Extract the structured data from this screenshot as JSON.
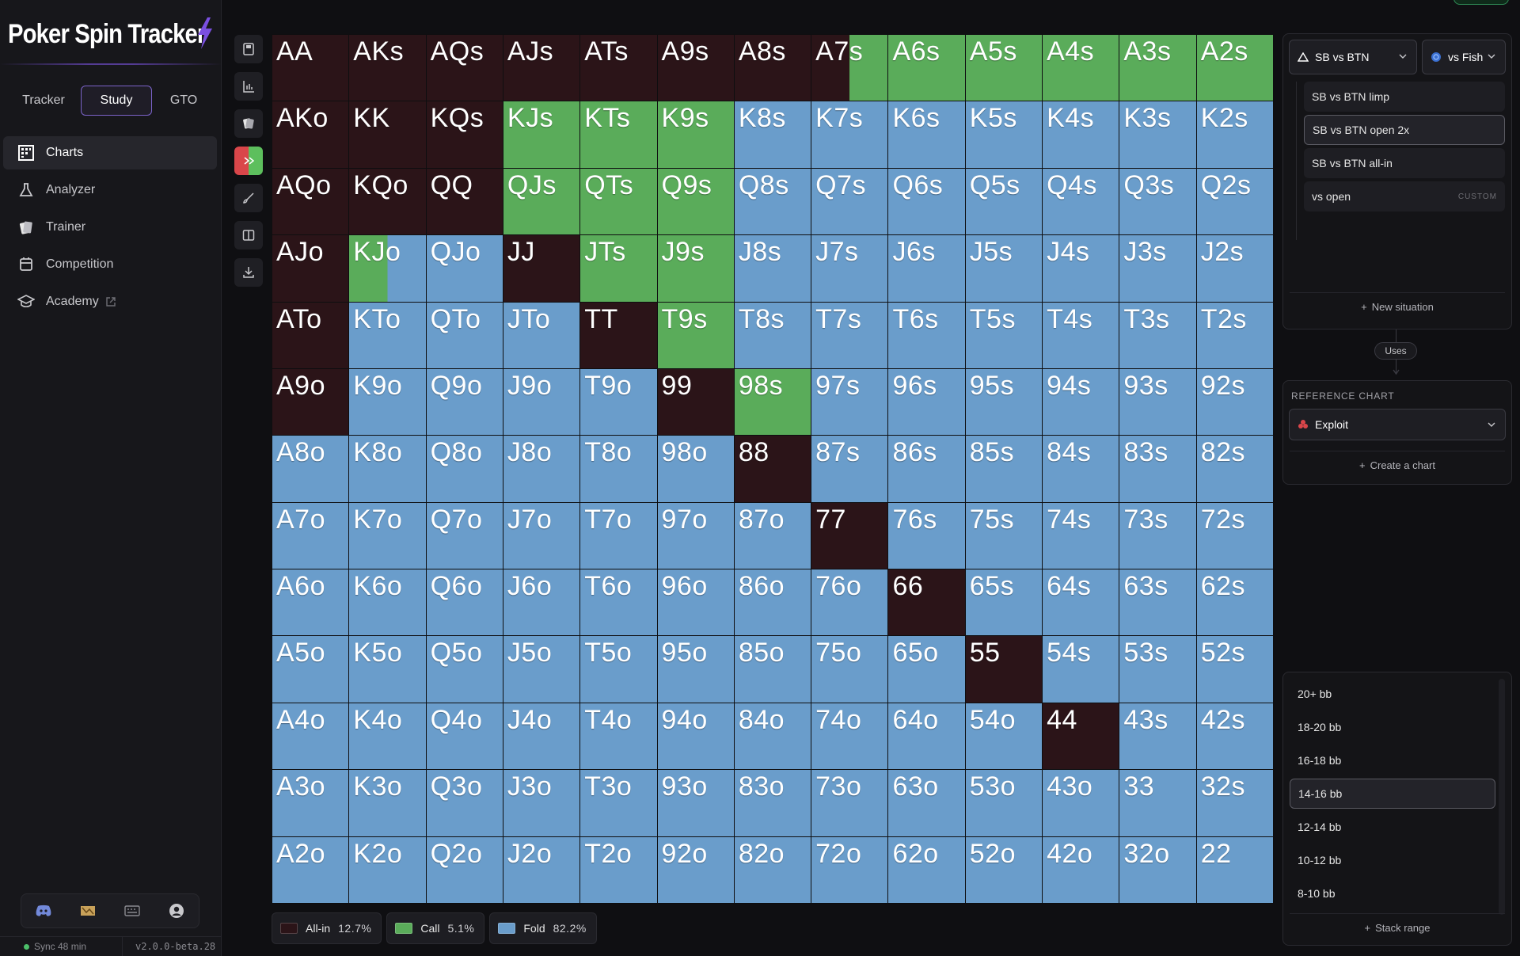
{
  "brand": {
    "name": "Poker Spin Tracker"
  },
  "tabs": [
    {
      "label": "Tracker"
    },
    {
      "label": "Study",
      "active": true
    },
    {
      "label": "GTO"
    }
  ],
  "nav": [
    {
      "label": "Charts",
      "icon": "grid-icon",
      "active": true
    },
    {
      "label": "Analyzer",
      "icon": "flask-icon"
    },
    {
      "label": "Trainer",
      "icon": "cards-icon"
    },
    {
      "label": "Competition",
      "icon": "trophy-icon"
    },
    {
      "label": "Academy",
      "icon": "graduation-cap-icon",
      "external": true
    }
  ],
  "footer": {
    "icons": [
      "discord-icon",
      "map-icon",
      "keyboard-icon",
      "user-icon"
    ],
    "sync": "Sync 48 min",
    "version": "v2.0.0-beta.28"
  },
  "toolbar": [
    "save-icon",
    "bar-chart-icon",
    "cards-icon",
    "color-action-icon",
    "brush-icon",
    "split-view-icon",
    "download-icon"
  ],
  "colors": {
    "allin": "#2b1418",
    "call": "#5aac5a",
    "fold": "#6a9dcb",
    "accent": "#7b63c9"
  },
  "range_grid": {
    "rows": [
      [
        [
          "AA",
          "a"
        ],
        [
          "AKs",
          "a"
        ],
        [
          "AQs",
          "a"
        ],
        [
          "AJs",
          "a"
        ],
        [
          "ATs",
          "a"
        ],
        [
          "A9s",
          "a"
        ],
        [
          "A8s",
          "a"
        ],
        [
          "A7s",
          "ac"
        ],
        [
          "A6s",
          "c"
        ],
        [
          "A5s",
          "c"
        ],
        [
          "A4s",
          "c"
        ],
        [
          "A3s",
          "c"
        ],
        [
          "A2s",
          "c"
        ]
      ],
      [
        [
          "AKo",
          "a"
        ],
        [
          "KK",
          "a"
        ],
        [
          "KQs",
          "a"
        ],
        [
          "KJs",
          "c"
        ],
        [
          "KTs",
          "c"
        ],
        [
          "K9s",
          "c"
        ],
        [
          "K8s",
          "f"
        ],
        [
          "K7s",
          "f"
        ],
        [
          "K6s",
          "f"
        ],
        [
          "K5s",
          "f"
        ],
        [
          "K4s",
          "f"
        ],
        [
          "K3s",
          "f"
        ],
        [
          "K2s",
          "f"
        ]
      ],
      [
        [
          "AQo",
          "a"
        ],
        [
          "KQo",
          "a"
        ],
        [
          "QQ",
          "a"
        ],
        [
          "QJs",
          "c"
        ],
        [
          "QTs",
          "c"
        ],
        [
          "Q9s",
          "c"
        ],
        [
          "Q8s",
          "f"
        ],
        [
          "Q7s",
          "f"
        ],
        [
          "Q6s",
          "f"
        ],
        [
          "Q5s",
          "f"
        ],
        [
          "Q4s",
          "f"
        ],
        [
          "Q3s",
          "f"
        ],
        [
          "Q2s",
          "f"
        ]
      ],
      [
        [
          "AJo",
          "a"
        ],
        [
          "KJo",
          "cf"
        ],
        [
          "QJo",
          "f"
        ],
        [
          "JJ",
          "a"
        ],
        [
          "JTs",
          "c"
        ],
        [
          "J9s",
          "c"
        ],
        [
          "J8s",
          "f"
        ],
        [
          "J7s",
          "f"
        ],
        [
          "J6s",
          "f"
        ],
        [
          "J5s",
          "f"
        ],
        [
          "J4s",
          "f"
        ],
        [
          "J3s",
          "f"
        ],
        [
          "J2s",
          "f"
        ]
      ],
      [
        [
          "ATo",
          "a"
        ],
        [
          "KTo",
          "f"
        ],
        [
          "QTo",
          "f"
        ],
        [
          "JTo",
          "f"
        ],
        [
          "TT",
          "a"
        ],
        [
          "T9s",
          "c"
        ],
        [
          "T8s",
          "f"
        ],
        [
          "T7s",
          "f"
        ],
        [
          "T6s",
          "f"
        ],
        [
          "T5s",
          "f"
        ],
        [
          "T4s",
          "f"
        ],
        [
          "T3s",
          "f"
        ],
        [
          "T2s",
          "f"
        ]
      ],
      [
        [
          "A9o",
          "a"
        ],
        [
          "K9o",
          "f"
        ],
        [
          "Q9o",
          "f"
        ],
        [
          "J9o",
          "f"
        ],
        [
          "T9o",
          "f"
        ],
        [
          "99",
          "a"
        ],
        [
          "98s",
          "c"
        ],
        [
          "97s",
          "f"
        ],
        [
          "96s",
          "f"
        ],
        [
          "95s",
          "f"
        ],
        [
          "94s",
          "f"
        ],
        [
          "93s",
          "f"
        ],
        [
          "92s",
          "f"
        ]
      ],
      [
        [
          "A8o",
          "f"
        ],
        [
          "K8o",
          "f"
        ],
        [
          "Q8o",
          "f"
        ],
        [
          "J8o",
          "f"
        ],
        [
          "T8o",
          "f"
        ],
        [
          "98o",
          "f"
        ],
        [
          "88",
          "a"
        ],
        [
          "87s",
          "f"
        ],
        [
          "86s",
          "f"
        ],
        [
          "85s",
          "f"
        ],
        [
          "84s",
          "f"
        ],
        [
          "83s",
          "f"
        ],
        [
          "82s",
          "f"
        ]
      ],
      [
        [
          "A7o",
          "f"
        ],
        [
          "K7o",
          "f"
        ],
        [
          "Q7o",
          "f"
        ],
        [
          "J7o",
          "f"
        ],
        [
          "T7o",
          "f"
        ],
        [
          "97o",
          "f"
        ],
        [
          "87o",
          "f"
        ],
        [
          "77",
          "a"
        ],
        [
          "76s",
          "f"
        ],
        [
          "75s",
          "f"
        ],
        [
          "74s",
          "f"
        ],
        [
          "73s",
          "f"
        ],
        [
          "72s",
          "f"
        ]
      ],
      [
        [
          "A6o",
          "f"
        ],
        [
          "K6o",
          "f"
        ],
        [
          "Q6o",
          "f"
        ],
        [
          "J6o",
          "f"
        ],
        [
          "T6o",
          "f"
        ],
        [
          "96o",
          "f"
        ],
        [
          "86o",
          "f"
        ],
        [
          "76o",
          "f"
        ],
        [
          "66",
          "a"
        ],
        [
          "65s",
          "f"
        ],
        [
          "64s",
          "f"
        ],
        [
          "63s",
          "f"
        ],
        [
          "62s",
          "f"
        ]
      ],
      [
        [
          "A5o",
          "f"
        ],
        [
          "K5o",
          "f"
        ],
        [
          "Q5o",
          "f"
        ],
        [
          "J5o",
          "f"
        ],
        [
          "T5o",
          "f"
        ],
        [
          "95o",
          "f"
        ],
        [
          "85o",
          "f"
        ],
        [
          "75o",
          "f"
        ],
        [
          "65o",
          "f"
        ],
        [
          "55",
          "a"
        ],
        [
          "54s",
          "f"
        ],
        [
          "53s",
          "f"
        ],
        [
          "52s",
          "f"
        ]
      ],
      [
        [
          "A4o",
          "f"
        ],
        [
          "K4o",
          "f"
        ],
        [
          "Q4o",
          "f"
        ],
        [
          "J4o",
          "f"
        ],
        [
          "T4o",
          "f"
        ],
        [
          "94o",
          "f"
        ],
        [
          "84o",
          "f"
        ],
        [
          "74o",
          "f"
        ],
        [
          "64o",
          "f"
        ],
        [
          "54o",
          "f"
        ],
        [
          "44",
          "a"
        ],
        [
          "43s",
          "f"
        ],
        [
          "42s",
          "f"
        ]
      ],
      [
        [
          "A3o",
          "f"
        ],
        [
          "K3o",
          "f"
        ],
        [
          "Q3o",
          "f"
        ],
        [
          "J3o",
          "f"
        ],
        [
          "T3o",
          "f"
        ],
        [
          "93o",
          "f"
        ],
        [
          "83o",
          "f"
        ],
        [
          "73o",
          "f"
        ],
        [
          "63o",
          "f"
        ],
        [
          "53o",
          "f"
        ],
        [
          "43o",
          "f"
        ],
        [
          "33",
          "f"
        ],
        [
          "32s",
          "f"
        ]
      ],
      [
        [
          "A2o",
          "f"
        ],
        [
          "K2o",
          "f"
        ],
        [
          "Q2o",
          "f"
        ],
        [
          "J2o",
          "f"
        ],
        [
          "T2o",
          "f"
        ],
        [
          "92o",
          "f"
        ],
        [
          "82o",
          "f"
        ],
        [
          "72o",
          "f"
        ],
        [
          "62o",
          "f"
        ],
        [
          "52o",
          "f"
        ],
        [
          "42o",
          "f"
        ],
        [
          "32o",
          "f"
        ],
        [
          "22",
          "f"
        ]
      ]
    ]
  },
  "legend": [
    {
      "label": "All-in",
      "pct": "12.7%",
      "color": "#2b1418"
    },
    {
      "label": "Call",
      "pct": "5.1%",
      "color": "#5aac5a"
    },
    {
      "label": "Fold",
      "pct": "82.2%",
      "color": "#6a9dcb"
    }
  ],
  "right_panel": {
    "position_select": "SB vs BTN",
    "opponent_select": "vs Fish",
    "situations": [
      {
        "label": "SB vs BTN limp"
      },
      {
        "label": "SB vs BTN open 2x",
        "selected": true
      },
      {
        "label": "SB vs BTN all-in"
      },
      {
        "label": "vs open",
        "tag": "CUSTOM"
      }
    ],
    "new_situation": "New situation",
    "uses_label": "Uses",
    "reference_title": "REFERENCE CHART",
    "reference_select": "Exploit",
    "create_chart": "Create a chart",
    "stacks": [
      {
        "label": "20+ bb"
      },
      {
        "label": "18-20 bb"
      },
      {
        "label": "16-18 bb"
      },
      {
        "label": "14-16 bb",
        "selected": true
      },
      {
        "label": "12-14 bb"
      },
      {
        "label": "10-12 bb"
      },
      {
        "label": "8-10 bb"
      }
    ],
    "stack_range": "Stack range"
  }
}
